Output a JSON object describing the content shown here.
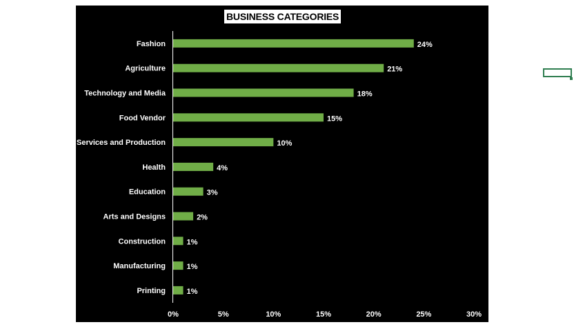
{
  "chart_data": {
    "type": "bar",
    "orientation": "horizontal",
    "title": "BUSINESS CATEGORIES",
    "categories": [
      "Fashion",
      "Agriculture",
      "Technology and Media",
      "Food Vendor",
      "Services and Production",
      "Health",
      "Education",
      "Arts and Designs",
      "Construction",
      "Manufacturing",
      "Printing"
    ],
    "values": [
      24,
      21,
      18,
      15,
      10,
      4,
      3,
      2,
      1,
      1,
      1
    ],
    "data_labels": [
      "24%",
      "21%",
      "18%",
      "15%",
      "10%",
      "4%",
      "3%",
      "2%",
      "1%",
      "1%",
      "1%"
    ],
    "xlim": [
      0,
      30
    ],
    "xticks": [
      0,
      5,
      10,
      15,
      20,
      25,
      30
    ],
    "xtick_labels": [
      "0%",
      "5%",
      "10%",
      "15%",
      "20%",
      "25%",
      "30%"
    ],
    "xlabel": "",
    "ylabel": "",
    "grid": false,
    "legend": "none",
    "colors": {
      "bar": "#70ad47",
      "background": "#000000",
      "text": "#ffffff",
      "axis": "#ffffff",
      "accent_box": "#2e7d4f"
    }
  }
}
